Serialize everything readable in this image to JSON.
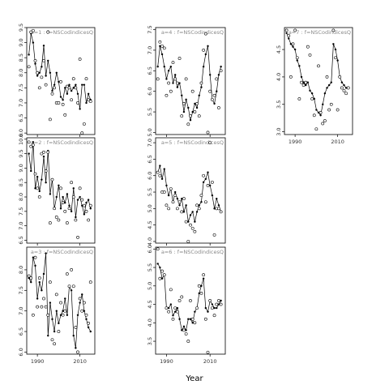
{
  "xlabel": "Year",
  "chart_data": [
    {
      "type": "line",
      "strip": "a=1 : f=NSCodindicesQ",
      "ylim": [
        5.95,
        9.5
      ],
      "yticks": [
        6.0,
        6.5,
        7.0,
        7.5,
        8.0,
        8.5,
        9.0,
        9.5
      ],
      "xlim": [
        1985,
        2017
      ],
      "xticks": [
        1990,
        2010
      ],
      "years": [
        1986,
        1987,
        1988,
        1989,
        1990,
        1991,
        1992,
        1993,
        1994,
        1995,
        1996,
        1997,
        1998,
        1999,
        2000,
        2001,
        2002,
        2003,
        2004,
        2005,
        2006,
        2007,
        2008,
        2009,
        2010,
        2011,
        2012,
        2013,
        2014,
        2015
      ],
      "series": [
        {
          "values": [
            8.6,
            9.3,
            9.0,
            8.3,
            7.9,
            8.0,
            8.2,
            8.9,
            7.9,
            8.4,
            8.0,
            7.4,
            7.6,
            8.0,
            7.7,
            7.2,
            7.1,
            7.5,
            7.3,
            7.6,
            7.4,
            7.5,
            7.6,
            7.3,
            6.8,
            7.6,
            7.6,
            7.0,
            7.3,
            7.1
          ]
        },
        {
          "values": [
            8.2,
            9.35,
            9.4,
            8.4,
            8.0,
            7.5,
            7.85,
            8.4,
            7.6,
            9.35,
            6.45,
            7.3,
            7.5,
            7.0,
            7.0,
            7.7,
            6.95,
            6.6,
            7.55,
            7.5,
            7.1,
            7.8,
            7.5,
            7.0,
            8.45,
            6.0,
            6.3,
            7.8,
            7.1,
            7.05
          ]
        }
      ]
    },
    {
      "type": "line",
      "strip": "a=4 : f=NSCodindicesQ",
      "ylim": [
        4.95,
        7.55
      ],
      "yticks": [
        5.0,
        5.5,
        6.0,
        6.5,
        7.0,
        7.5
      ],
      "xlim": [
        1985,
        2017
      ],
      "xticks": [
        1990,
        2010
      ],
      "years": [
        1986,
        1987,
        1988,
        1989,
        1990,
        1991,
        1992,
        1993,
        1994,
        1995,
        1996,
        1997,
        1998,
        1999,
        2000,
        2001,
        2002,
        2003,
        2004,
        2005,
        2006,
        2007,
        2008,
        2009,
        2010,
        2011,
        2012,
        2013,
        2014,
        2015
      ],
      "series": [
        {
          "values": [
            6.6,
            7.1,
            6.9,
            6.6,
            6.3,
            6.5,
            6.6,
            6.2,
            6.4,
            6.1,
            6.2,
            5.9,
            5.5,
            5.8,
            5.6,
            5.3,
            5.5,
            5.7,
            5.6,
            5.9,
            6.1,
            6.6,
            6.9,
            7.1,
            6.4,
            5.8,
            5.7,
            6.0,
            6.4,
            6.6
          ]
        },
        {
          "values": [
            6.3,
            7.2,
            7.1,
            7.05,
            5.9,
            6.2,
            6.0,
            6.7,
            6.3,
            6.2,
            6.8,
            5.4,
            5.7,
            6.3,
            5.2,
            5.4,
            6.0,
            5.5,
            5.7,
            5.4,
            6.2,
            7.0,
            7.4,
            5.0,
            6.0,
            5.8,
            5.9,
            6.3,
            5.6,
            6.5
          ]
        }
      ]
    },
    {
      "type": "line",
      "strip": "a=7 : f=NSCodindicesQ",
      "ylim": [
        2.95,
        4.9
      ],
      "yticks": [
        3.0,
        3.5,
        4.0,
        4.5
      ],
      "xlim": [
        1985,
        2017
      ],
      "xticks": [
        1990,
        2010
      ],
      "years": [
        1986,
        1987,
        1988,
        1989,
        1990,
        1991,
        1992,
        1993,
        1994,
        1995,
        1996,
        1997,
        1998,
        1999,
        2000,
        2001,
        2002,
        2003,
        2004,
        2005,
        2006,
        2007,
        2008,
        2009,
        2010,
        2011,
        2012,
        2013,
        2014,
        2015
      ],
      "series": [
        {
          "values": [
            4.8,
            4.7,
            4.6,
            4.55,
            4.5,
            4.3,
            4.2,
            4.0,
            3.9,
            3.85,
            3.9,
            3.75,
            3.7,
            3.6,
            3.4,
            3.35,
            3.3,
            3.5,
            3.7,
            3.8,
            3.85,
            3.9,
            4.6,
            4.5,
            4.3,
            4.0,
            3.9,
            3.85,
            3.8,
            3.8
          ]
        },
        {
          "values": [
            4.85,
            4.75,
            4.0,
            4.6,
            4.85,
            4.35,
            3.6,
            3.9,
            3.85,
            3.9,
            4.55,
            4.4,
            3.6,
            3.3,
            3.05,
            4.2,
            3.35,
            3.15,
            3.2,
            4.0,
            3.4,
            3.5,
            4.85,
            4.35,
            3.4,
            4.0,
            3.8,
            3.75,
            3.7,
            3.8
          ]
        }
      ]
    },
    {
      "type": "line",
      "strip": "a=2 : f=NSCodindicesQ",
      "ylim": [
        6.4,
        10.05
      ],
      "yticks": [
        6.5,
        7.0,
        7.5,
        8.0,
        8.5,
        9.0,
        9.5,
        10.0
      ],
      "xlim": [
        1985,
        2017
      ],
      "xticks": [
        1990,
        2010
      ],
      "years": [
        1986,
        1987,
        1988,
        1989,
        1990,
        1991,
        1992,
        1993,
        1994,
        1995,
        1996,
        1997,
        1998,
        1999,
        2000,
        2001,
        2002,
        2003,
        2004,
        2005,
        2006,
        2007,
        2008,
        2009,
        2010,
        2011,
        2012,
        2013,
        2014,
        2015
      ],
      "series": [
        {
          "values": [
            9.5,
            8.9,
            9.9,
            8.3,
            8.7,
            8.2,
            8.6,
            9.4,
            8.5,
            9.6,
            8.1,
            8.6,
            7.6,
            8.0,
            8.4,
            7.6,
            8.0,
            7.8,
            8.1,
            7.7,
            7.5,
            8.3,
            7.3,
            7.9,
            8.0,
            7.7,
            7.4,
            7.8,
            7.9,
            7.6
          ]
        },
        {
          "values": [
            9.9,
            9.75,
            9.8,
            8.8,
            8.3,
            8.0,
            9.5,
            9.55,
            8.9,
            9.55,
            7.1,
            8.6,
            7.6,
            7.3,
            7.2,
            8.3,
            7.8,
            7.5,
            7.1,
            7.6,
            8.5,
            8.0,
            7.2,
            6.6,
            8.3,
            7.9,
            7.7,
            7.5,
            7.2,
            7.7
          ]
        }
      ]
    },
    {
      "type": "line",
      "strip": "a=5 : f=NSCodindicesQ",
      "ylim": [
        3.95,
        7.15
      ],
      "yticks": [
        4.0,
        4.5,
        5.0,
        5.5,
        6.0,
        6.5,
        7.0
      ],
      "xlim": [
        1985,
        2017
      ],
      "xticks": [
        1990,
        2010
      ],
      "years": [
        1986,
        1987,
        1988,
        1989,
        1990,
        1991,
        1992,
        1993,
        1994,
        1995,
        1996,
        1997,
        1998,
        1999,
        2000,
        2001,
        2002,
        2003,
        2004,
        2005,
        2006,
        2007,
        2008,
        2009,
        2010,
        2011,
        2012,
        2013,
        2014,
        2015
      ],
      "series": [
        {
          "values": [
            6.1,
            6.3,
            5.9,
            6.2,
            5.7,
            5.4,
            5.6,
            5.2,
            5.5,
            5.3,
            5.1,
            5.3,
            4.9,
            5.1,
            4.6,
            4.8,
            4.9,
            4.6,
            4.9,
            5.1,
            5.2,
            5.8,
            5.9,
            6.1,
            5.7,
            5.4,
            5.0,
            5.3,
            5.1,
            4.9
          ]
        },
        {
          "values": [
            6.1,
            6.0,
            5.5,
            5.5,
            5.1,
            5.0,
            5.6,
            5.2,
            5.4,
            5.0,
            5.2,
            4.9,
            5.3,
            4.6,
            4.0,
            4.5,
            4.4,
            4.3,
            5.1,
            5.0,
            5.4,
            6.0,
            5.2,
            5.7,
            7.0,
            5.8,
            4.2,
            5.0,
            5.0,
            4.9
          ]
        }
      ]
    },
    {
      "type": "line",
      "strip": "a=3 : f=NSCodindicesQ",
      "ylim": [
        5.95,
        8.55
      ],
      "yticks": [
        6.0,
        6.5,
        7.0,
        7.5,
        8.0
      ],
      "xlim": [
        1985,
        2017
      ],
      "xticks": [
        1990,
        2010
      ],
      "years": [
        1986,
        1987,
        1988,
        1989,
        1990,
        1991,
        1992,
        1993,
        1994,
        1995,
        1996,
        1997,
        1998,
        1999,
        2000,
        2001,
        2002,
        2003,
        2004,
        2005,
        2006,
        2007,
        2008,
        2009,
        2010,
        2011,
        2012,
        2013,
        2014,
        2015
      ],
      "series": [
        {
          "values": [
            7.8,
            7.7,
            8.3,
            8.1,
            7.3,
            7.7,
            7.5,
            7.9,
            8.4,
            6.4,
            7.2,
            6.8,
            6.5,
            7.0,
            6.7,
            6.9,
            7.0,
            7.3,
            6.9,
            7.6,
            7.5,
            6.4,
            6.1,
            6.9,
            7.2,
            7.4,
            7.0,
            6.8,
            6.6,
            6.5
          ]
        },
        {
          "values": [
            7.85,
            7.8,
            6.9,
            8.3,
            7.1,
            7.8,
            7.1,
            7.3,
            7.1,
            6.9,
            7.7,
            6.3,
            6.2,
            7.4,
            6.5,
            7.2,
            6.9,
            7.0,
            7.9,
            7.6,
            8.0,
            7.6,
            6.6,
            6.0,
            7.3,
            7.0,
            7.2,
            6.9,
            6.7,
            7.7
          ]
        }
      ]
    },
    {
      "type": "line",
      "strip": "a=6 : f=NSCodindicesQ",
      "ylim": [
        3.15,
        6.05
      ],
      "yticks": [
        3.5,
        4.0,
        4.5,
        5.0,
        5.5,
        6.0
      ],
      "xlim": [
        1985,
        2017
      ],
      "xticks": [
        1990,
        2010
      ],
      "years": [
        1986,
        1987,
        1988,
        1989,
        1990,
        1991,
        1992,
        1993,
        1994,
        1995,
        1996,
        1997,
        1998,
        1999,
        2000,
        2001,
        2002,
        2003,
        2004,
        2005,
        2006,
        2007,
        2008,
        2009,
        2010,
        2011,
        2012,
        2013,
        2014,
        2015
      ],
      "series": [
        {
          "values": [
            5.6,
            5.5,
            5.2,
            5.3,
            4.4,
            4.4,
            4.5,
            4.2,
            4.3,
            4.4,
            4.1,
            3.8,
            3.9,
            3.8,
            4.1,
            4.1,
            4.0,
            4.3,
            4.4,
            4.8,
            5.0,
            5.2,
            4.4,
            4.3,
            4.6,
            4.5,
            4.4,
            4.4,
            4.5,
            4.6
          ]
        },
        {
          "values": [
            6.0,
            5.2,
            5.4,
            5.3,
            4.4,
            4.3,
            4.9,
            4.1,
            4.4,
            4.3,
            4.6,
            4.7,
            3.8,
            3.7,
            3.5,
            4.6,
            4.1,
            4.0,
            4.4,
            5.0,
            4.8,
            5.3,
            4.1,
            3.2,
            4.6,
            4.4,
            4.2,
            4.5,
            4.6,
            4.5
          ]
        }
      ]
    }
  ]
}
